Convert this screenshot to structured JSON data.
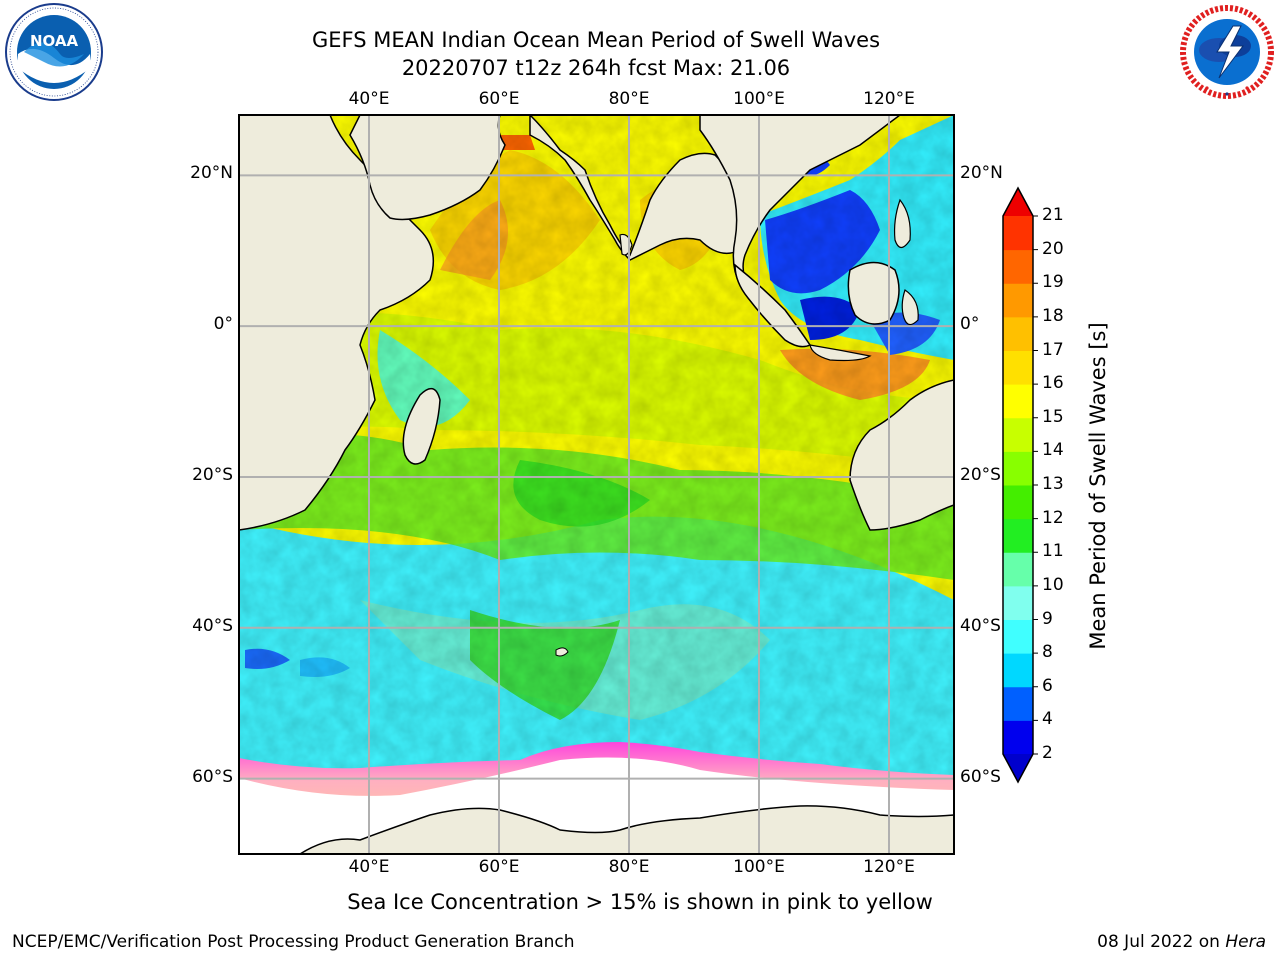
{
  "header": {
    "title_line1": "GEFS MEAN Indian Ocean Mean Period of Swell Waves",
    "title_line2": "20220707 t12z 264h fcst   Max: 21.06"
  },
  "logos": {
    "left": {
      "name": "noaa-logo",
      "text": "NOAA",
      "ring_text": "NATIONAL OCEANIC AND ATMOSPHERIC ADMINISTRATION · U.S. DEPARTMENT OF COMMERCE"
    },
    "right": {
      "name": "national-weather-service-logo",
      "ring_text": "NATIONAL WEATHER SERVICE"
    }
  },
  "map": {
    "region": "Indian Ocean",
    "lon_range_deg": [
      20,
      130
    ],
    "lat_range_deg": [
      -70,
      28
    ],
    "gridlines": true,
    "lon_ticks": [
      "40°E",
      "60°E",
      "80°E",
      "100°E",
      "120°E"
    ],
    "lat_ticks_left": [
      "20°N",
      "0°",
      "20°S",
      "40°S",
      "60°S"
    ],
    "lat_ticks_right": [
      "20°N",
      "0°",
      "20°S",
      "40°S",
      "60°S"
    ],
    "colors": {
      "land": "#eeecdc",
      "gridline": "#b0b0b0",
      "coastline": "#000000",
      "sea_ice_edge": "#ff44dd",
      "sea_ice_mid": "#ffb0b0",
      "sea_ice_inner": "#ffd090",
      "antarctic_interior": "#ffffff"
    }
  },
  "colorbar": {
    "label": "Mean Period of Swell Waves [s]",
    "tick_labels": [
      "2",
      "4",
      "6",
      "8",
      "9",
      "10",
      "11",
      "12",
      "13",
      "14",
      "15",
      "16",
      "17",
      "18",
      "19",
      "20",
      "21"
    ],
    "color_levels": [
      "#0000ee",
      "#0060ff",
      "#00d8ff",
      "#40ffff",
      "#80ffee",
      "#66ffaa",
      "#22ee22",
      "#44ee00",
      "#88ff00",
      "#c8ff00",
      "#ffff00",
      "#ffe000",
      "#ffc000",
      "#ff9900",
      "#ff6600",
      "#ff3300"
    ],
    "under_color": "#0000cc",
    "over_color": "#ee0000",
    "extend": "both"
  },
  "footer": {
    "note": "Sea Ice Concentration > 15% is shown in pink to yellow",
    "producer": "NCEP/EMC/Verification Post Processing Product Generation Branch",
    "date_text": "08 Jul 2022 on ",
    "machine": "Hera"
  }
}
